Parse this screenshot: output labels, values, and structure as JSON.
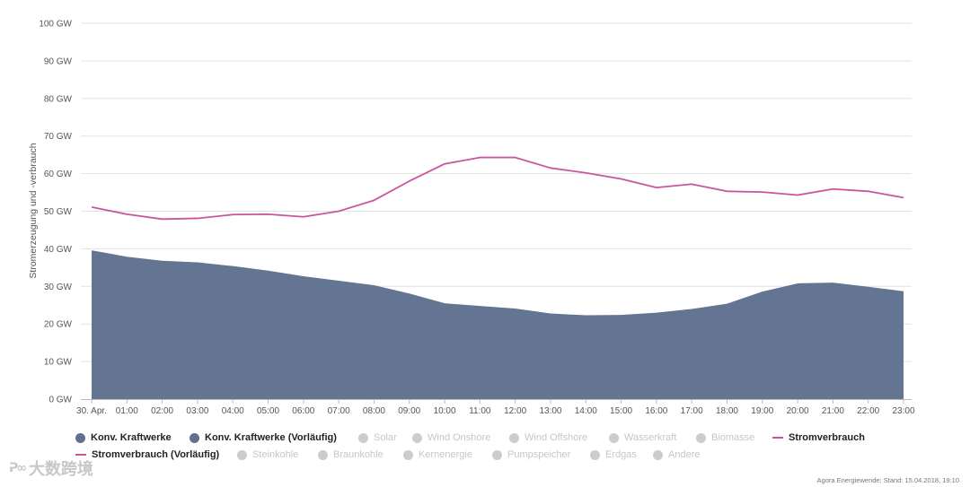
{
  "chart_data": {
    "type": "area",
    "ylabel": "Stromerzeugung und -verbrauch",
    "ylim": [
      0,
      100
    ],
    "y_ticks": [
      "0 GW",
      "10 GW",
      "20 GW",
      "30 GW",
      "40 GW",
      "50 GW",
      "60 GW",
      "70 GW",
      "80 GW",
      "90 GW",
      "100 GW"
    ],
    "x": [
      "30. Apr.",
      "01:00",
      "02:00",
      "03:00",
      "04:00",
      "05:00",
      "06:00",
      "07:00",
      "08:00",
      "09:00",
      "10:00",
      "11:00",
      "12:00",
      "13:00",
      "14:00",
      "15:00",
      "16:00",
      "17:00",
      "18:00",
      "19:00",
      "20:00",
      "21:00",
      "22:00",
      "23:00"
    ],
    "grid": true,
    "legend_position": "bottom",
    "series": [
      {
        "name": "Konv. Kraftwerke",
        "kind": "area",
        "color": "#637592",
        "values": [
          39.6,
          37.9,
          36.8,
          36.4,
          35.4,
          34.2,
          32.7,
          31.5,
          30.3,
          28.1,
          25.5,
          24.8,
          24.1,
          22.8,
          22.3,
          22.4,
          23.0,
          24.0,
          25.4,
          28.6,
          30.8,
          31.0,
          29.9,
          28.7
        ]
      },
      {
        "name": "Stromverbrauch",
        "kind": "line",
        "color": "#c9559f",
        "values": [
          51.1,
          49.2,
          47.9,
          48.1,
          49.1,
          49.2,
          48.5,
          50.0,
          52.9,
          58.0,
          62.6,
          64.3,
          64.3,
          61.5,
          60.2,
          58.6,
          56.3,
          57.2,
          55.3,
          55.1,
          54.3,
          55.9,
          55.3,
          53.6
        ]
      }
    ]
  },
  "legend": [
    {
      "label": "Konv. Kraftwerke",
      "marker": "dot",
      "color": "#5f7090",
      "active": true
    },
    {
      "label": "Konv. Kraftwerke (Vorläufig)",
      "marker": "dot",
      "color": "#5f7090",
      "active": true
    },
    {
      "label": "Solar",
      "marker": "dot",
      "color": "#cccccc",
      "active": false
    },
    {
      "label": "Wind Onshore",
      "marker": "dot",
      "color": "#cccccc",
      "active": false
    },
    {
      "label": "Wind Offshore",
      "marker": "dot",
      "color": "#cccccc",
      "active": false
    },
    {
      "label": "Wasserkraft",
      "marker": "dot",
      "color": "#cccccc",
      "active": false
    },
    {
      "label": "Biomasse",
      "marker": "dot",
      "color": "#cccccc",
      "active": false
    },
    {
      "label": "Stromverbrauch",
      "marker": "line",
      "color": "#c9559f",
      "active": true
    },
    {
      "label": "Stromverbrauch (Vorläufig)",
      "marker": "dashed-line",
      "color": "#c9559f",
      "active": true
    },
    {
      "label": "Steinkohle",
      "marker": "dot",
      "color": "#cccccc",
      "active": false
    },
    {
      "label": "Braunkohle",
      "marker": "dot",
      "color": "#cccccc",
      "active": false
    },
    {
      "label": "Kernenergie",
      "marker": "dot",
      "color": "#cccccc",
      "active": false
    },
    {
      "label": "Pumpspeicher",
      "marker": "dot",
      "color": "#cccccc",
      "active": false
    },
    {
      "label": "Erdgas",
      "marker": "dot",
      "color": "#cccccc",
      "active": false
    },
    {
      "label": "Andere",
      "marker": "dot",
      "color": "#cccccc",
      "active": false
    }
  ],
  "source": "Agora Energiewende; Stand: 15.04.2018, 19:10",
  "watermark": {
    "logo": "ᕈ∞",
    "text": "大数跨境"
  }
}
